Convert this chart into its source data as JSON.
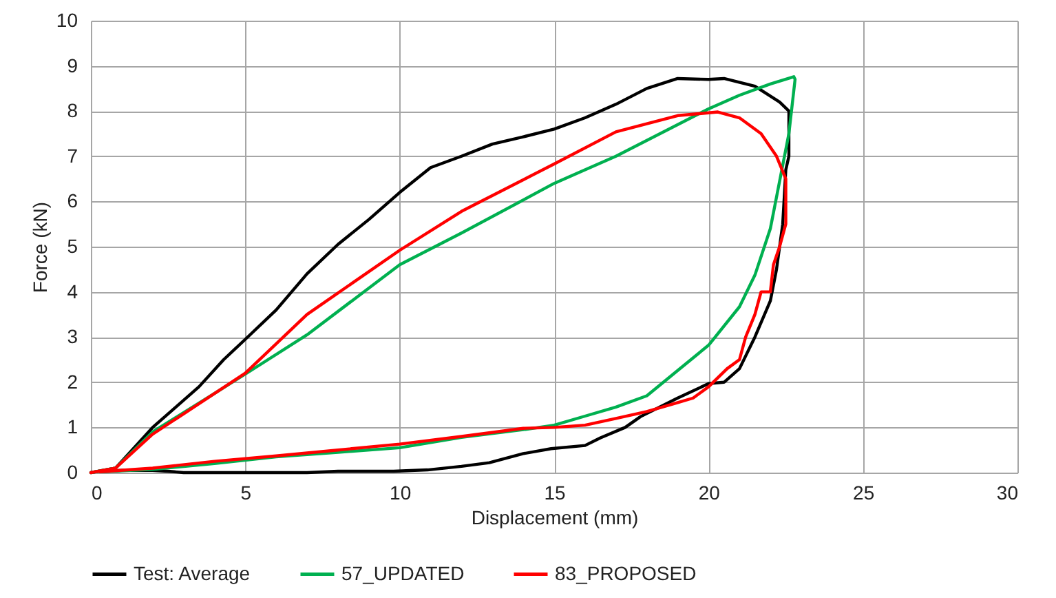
{
  "chart_data": {
    "type": "line",
    "xlabel": "Displacement (mm)",
    "ylabel": "Force (kN)",
    "xlim": [
      0,
      30
    ],
    "ylim": [
      0,
      10
    ],
    "xticks": [
      0,
      5,
      10,
      15,
      20,
      25,
      30
    ],
    "yticks": [
      0,
      1,
      2,
      3,
      4,
      5,
      6,
      7,
      8,
      9,
      10
    ],
    "grid": true,
    "legend": "bottom",
    "marker": "none",
    "line_style": "solid",
    "series": [
      {
        "name": "Test: Average",
        "color": "#000000",
        "x": [
          0,
          0.8,
          2,
          3.5,
          4.3,
          5,
          6,
          7,
          8,
          9,
          10,
          11,
          12,
          13,
          14,
          15,
          16,
          17,
          18,
          19,
          20,
          20.5,
          21.5,
          22.3,
          22.6,
          22.6,
          22.5,
          22.4,
          22.2,
          22,
          21.5,
          21,
          20.5,
          20,
          19,
          17.8,
          17.3,
          16.5,
          16,
          14.9,
          14,
          12.9,
          12,
          10.9,
          9.8,
          8,
          7,
          5,
          3,
          2.5,
          2,
          1,
          0.3
        ],
        "values": [
          0,
          0.1,
          1,
          1.9,
          2.5,
          2.95,
          3.6,
          4.4,
          5.05,
          5.6,
          6.2,
          6.75,
          7.0,
          7.27,
          7.43,
          7.6,
          7.85,
          8.15,
          8.5,
          8.72,
          8.7,
          8.72,
          8.55,
          8.2,
          8.0,
          7.0,
          6.7,
          5.5,
          4.5,
          3.8,
          3.0,
          2.3,
          2.0,
          1.97,
          1.65,
          1.24,
          1.0,
          0.77,
          0.6,
          0.53,
          0.42,
          0.22,
          0.14,
          0.06,
          0.03,
          0.03,
          0,
          0,
          0,
          0.03,
          0.05,
          0.05,
          0.02
        ]
      },
      {
        "name": "57_UPDATED",
        "color": "#00b050",
        "x": [
          0,
          0.8,
          2,
          4,
          5,
          7,
          10,
          12,
          15,
          17,
          20,
          21,
          22,
          22.76,
          22.8,
          22.6,
          22.4,
          22,
          21.5,
          21,
          20,
          19,
          18,
          17,
          16,
          15,
          14,
          12,
          10,
          8,
          6,
          4,
          2,
          0.3
        ],
        "values": [
          0,
          0.1,
          0.9,
          1.75,
          2.18,
          3.05,
          4.6,
          5.3,
          6.4,
          7.0,
          8.05,
          8.35,
          8.6,
          8.76,
          8.7,
          7.5,
          6.8,
          5.4,
          4.37,
          3.67,
          2.82,
          2.26,
          1.7,
          1.45,
          1.25,
          1.05,
          0.95,
          0.78,
          0.55,
          0.45,
          0.35,
          0.2,
          0.07,
          0.02
        ]
      },
      {
        "name": "83_PROPOSED",
        "color": "#ff0000",
        "x": [
          0,
          0.8,
          2,
          5,
          7,
          10,
          12,
          15,
          17,
          19,
          20.3,
          21,
          21.7,
          22.2,
          22.5,
          22.5,
          22.3,
          22.1,
          22,
          21.7,
          21.5,
          21.2,
          21,
          20.6,
          20,
          19.5,
          19,
          18,
          17,
          16,
          15,
          14,
          12,
          10,
          8,
          6,
          4,
          2,
          0.3
        ],
        "values": [
          0,
          0.1,
          0.85,
          2.2,
          3.5,
          4.92,
          5.78,
          6.83,
          7.54,
          7.9,
          7.98,
          7.85,
          7.5,
          7.0,
          6.5,
          5.5,
          5.0,
          4.6,
          4.0,
          4.0,
          3.5,
          3.0,
          2.5,
          2.3,
          1.9,
          1.65,
          1.55,
          1.35,
          1.2,
          1.05,
          1.0,
          0.98,
          0.8,
          0.63,
          0.5,
          0.37,
          0.25,
          0.1,
          0.02
        ]
      }
    ]
  }
}
